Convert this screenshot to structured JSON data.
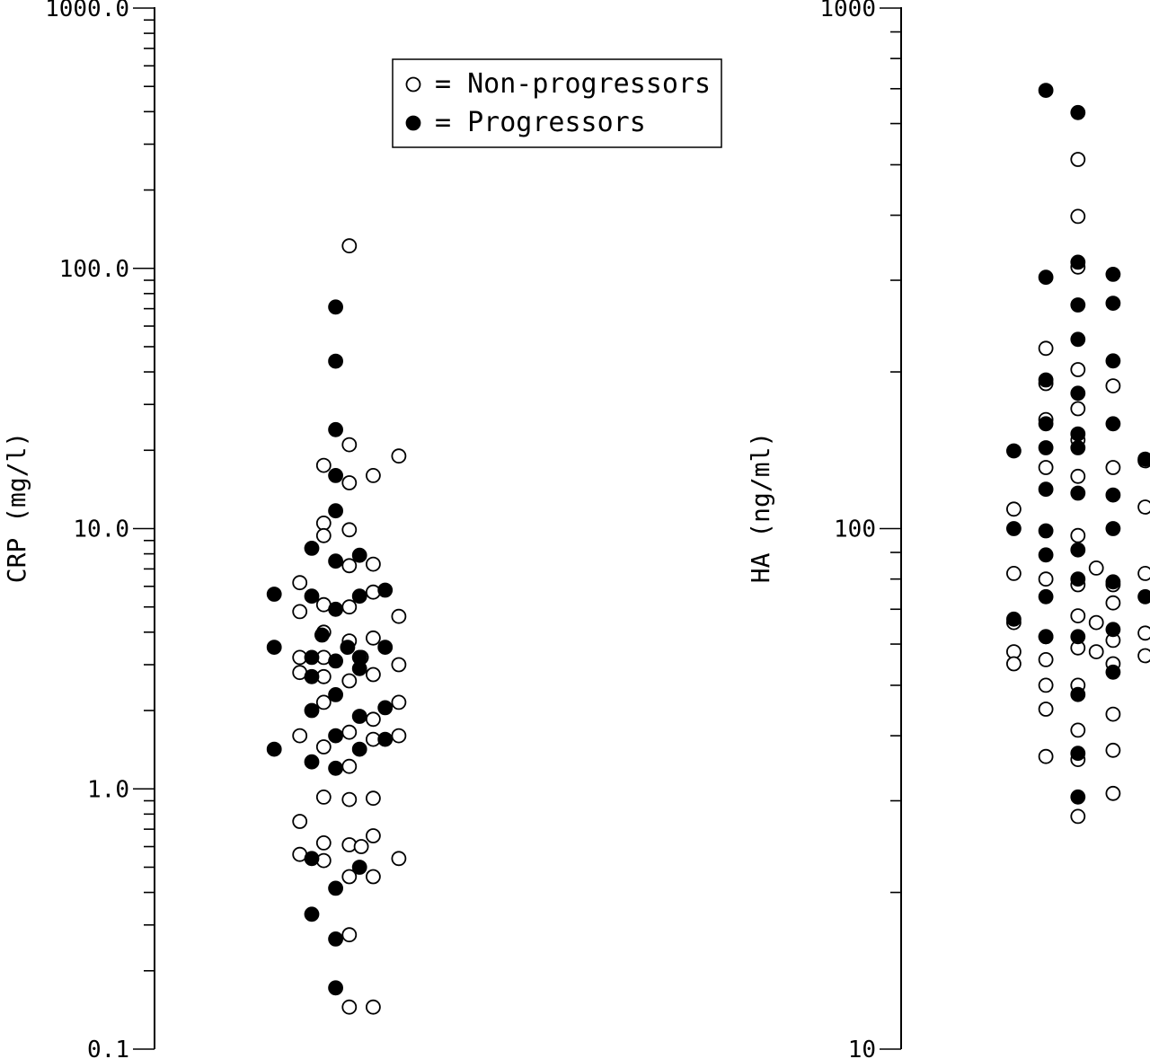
{
  "chart_data": [
    {
      "type": "scatter",
      "title": "",
      "xlabel": "",
      "ylabel": "CRP (mg/l)",
      "yscale": "log",
      "ylim": [
        0.1,
        1000
      ],
      "ticks": [
        "0.1",
        "1.0",
        "10.0",
        "100.0",
        "1000.0"
      ],
      "tick_values": [
        0.1,
        1,
        10,
        100,
        1000
      ],
      "grid": false,
      "legend": {
        "placement": "top-center",
        "entries": [
          {
            "symbol": "open-circle",
            "label": "= Non-progressors"
          },
          {
            "symbol": "filled-circle",
            "label": "= Progressors"
          }
        ]
      },
      "series": [
        {
          "name": "Non-progressors",
          "marker": "open",
          "points": [
            {
              "x": 0.52,
              "y": 122
            },
            {
              "x": 0.52,
              "y": 21
            },
            {
              "x": 0.52,
              "y": 15
            },
            {
              "x": 0.52,
              "y": 9.9
            },
            {
              "x": 0.52,
              "y": 7.2
            },
            {
              "x": 0.52,
              "y": 5.0
            },
            {
              "x": 0.52,
              "y": 3.7
            },
            {
              "x": 0.52,
              "y": 2.6
            },
            {
              "x": 0.52,
              "y": 1.65
            },
            {
              "x": 0.52,
              "y": 1.22
            },
            {
              "x": 0.52,
              "y": 0.91
            },
            {
              "x": 0.52,
              "y": 0.61
            },
            {
              "x": 0.52,
              "y": 0.46
            },
            {
              "x": 0.52,
              "y": 0.275
            },
            {
              "x": 0.52,
              "y": 0.145
            },
            {
              "x": 0.37,
              "y": 17.5
            },
            {
              "x": 0.37,
              "y": 10.5
            },
            {
              "x": 0.37,
              "y": 9.4
            },
            {
              "x": 0.37,
              "y": 5.1
            },
            {
              "x": 0.37,
              "y": 4.0
            },
            {
              "x": 0.37,
              "y": 3.2
            },
            {
              "x": 0.37,
              "y": 2.7
            },
            {
              "x": 0.37,
              "y": 2.15
            },
            {
              "x": 0.37,
              "y": 1.45
            },
            {
              "x": 0.37,
              "y": 0.93
            },
            {
              "x": 0.37,
              "y": 0.62
            },
            {
              "x": 0.37,
              "y": 0.53
            },
            {
              "x": 0.23,
              "y": 6.2
            },
            {
              "x": 0.23,
              "y": 4.8
            },
            {
              "x": 0.23,
              "y": 3.2
            },
            {
              "x": 0.23,
              "y": 2.8
            },
            {
              "x": 0.23,
              "y": 1.6
            },
            {
              "x": 0.23,
              "y": 0.75
            },
            {
              "x": 0.23,
              "y": 0.56
            },
            {
              "x": 0.66,
              "y": 16
            },
            {
              "x": 0.66,
              "y": 7.3
            },
            {
              "x": 0.66,
              "y": 5.7
            },
            {
              "x": 0.66,
              "y": 3.8
            },
            {
              "x": 0.66,
              "y": 2.75
            },
            {
              "x": 0.66,
              "y": 1.85
            },
            {
              "x": 0.66,
              "y": 1.55
            },
            {
              "x": 0.66,
              "y": 0.92
            },
            {
              "x": 0.66,
              "y": 0.66
            },
            {
              "x": 0.66,
              "y": 0.46
            },
            {
              "x": 0.66,
              "y": 0.145
            },
            {
              "x": 0.59,
              "y": 3.2
            },
            {
              "x": 0.59,
              "y": 0.6
            },
            {
              "x": 0.81,
              "y": 19
            },
            {
              "x": 0.81,
              "y": 4.6
            },
            {
              "x": 0.81,
              "y": 3.0
            },
            {
              "x": 0.81,
              "y": 2.15
            },
            {
              "x": 0.81,
              "y": 1.6
            },
            {
              "x": 0.81,
              "y": 0.54
            }
          ]
        },
        {
          "name": "Progressors",
          "marker": "filled",
          "points": [
            {
              "x": 0.44,
              "y": 71
            },
            {
              "x": 0.44,
              "y": 44
            },
            {
              "x": 0.44,
              "y": 24
            },
            {
              "x": 0.44,
              "y": 16
            },
            {
              "x": 0.44,
              "y": 11.7
            },
            {
              "x": 0.44,
              "y": 7.5
            },
            {
              "x": 0.44,
              "y": 4.9
            },
            {
              "x": 0.44,
              "y": 3.1
            },
            {
              "x": 0.44,
              "y": 2.3
            },
            {
              "x": 0.44,
              "y": 1.6
            },
            {
              "x": 0.44,
              "y": 1.2
            },
            {
              "x": 0.44,
              "y": 0.415
            },
            {
              "x": 0.44,
              "y": 0.265
            },
            {
              "x": 0.44,
              "y": 0.172
            },
            {
              "x": 0.3,
              "y": 8.4
            },
            {
              "x": 0.3,
              "y": 5.5
            },
            {
              "x": 0.3,
              "y": 3.2
            },
            {
              "x": 0.3,
              "y": 2.7
            },
            {
              "x": 0.3,
              "y": 2.0
            },
            {
              "x": 0.3,
              "y": 1.27
            },
            {
              "x": 0.3,
              "y": 0.54
            },
            {
              "x": 0.3,
              "y": 0.33
            },
            {
              "x": 0.08,
              "y": 5.6
            },
            {
              "x": 0.08,
              "y": 3.5
            },
            {
              "x": 0.08,
              "y": 1.42
            },
            {
              "x": 0.36,
              "y": 3.9
            },
            {
              "x": 0.51,
              "y": 3.5
            },
            {
              "x": 0.58,
              "y": 7.9
            },
            {
              "x": 0.58,
              "y": 5.5
            },
            {
              "x": 0.58,
              "y": 3.2
            },
            {
              "x": 0.58,
              "y": 2.9
            },
            {
              "x": 0.58,
              "y": 1.9
            },
            {
              "x": 0.58,
              "y": 1.42
            },
            {
              "x": 0.58,
              "y": 0.5
            },
            {
              "x": 0.73,
              "y": 5.8
            },
            {
              "x": 0.73,
              "y": 3.5
            },
            {
              "x": 0.73,
              "y": 2.05
            },
            {
              "x": 0.73,
              "y": 1.55
            }
          ]
        }
      ]
    },
    {
      "type": "scatter",
      "title": "",
      "xlabel": "",
      "ylabel": "HA (ng/ml)",
      "yscale": "log",
      "ylim": [
        10,
        1000
      ],
      "ticks": [
        "10",
        "100",
        "1000"
      ],
      "tick_values": [
        10,
        100,
        1000
      ],
      "grid": false,
      "series": [
        {
          "name": "Non-progressors",
          "marker": "open",
          "points": [
            {
              "x": 0.12,
              "y": 109
            },
            {
              "x": 0.12,
              "y": 82
            },
            {
              "x": 0.12,
              "y": 66
            },
            {
              "x": 0.12,
              "y": 58
            },
            {
              "x": 0.12,
              "y": 55
            },
            {
              "x": 0.33,
              "y": 222
            },
            {
              "x": 0.33,
              "y": 190
            },
            {
              "x": 0.33,
              "y": 162
            },
            {
              "x": 0.33,
              "y": 131
            },
            {
              "x": 0.33,
              "y": 80
            },
            {
              "x": 0.33,
              "y": 62
            },
            {
              "x": 0.33,
              "y": 56
            },
            {
              "x": 0.33,
              "y": 50
            },
            {
              "x": 0.33,
              "y": 45
            },
            {
              "x": 0.33,
              "y": 36.5
            },
            {
              "x": 0.54,
              "y": 512
            },
            {
              "x": 0.54,
              "y": 398
            },
            {
              "x": 0.54,
              "y": 318
            },
            {
              "x": 0.54,
              "y": 202
            },
            {
              "x": 0.54,
              "y": 170
            },
            {
              "x": 0.54,
              "y": 148
            },
            {
              "x": 0.54,
              "y": 126
            },
            {
              "x": 0.54,
              "y": 97
            },
            {
              "x": 0.54,
              "y": 78
            },
            {
              "x": 0.54,
              "y": 68
            },
            {
              "x": 0.54,
              "y": 59
            },
            {
              "x": 0.54,
              "y": 50
            },
            {
              "x": 0.54,
              "y": 41
            },
            {
              "x": 0.54,
              "y": 36
            },
            {
              "x": 0.54,
              "y": 28
            },
            {
              "x": 0.66,
              "y": 84
            },
            {
              "x": 0.66,
              "y": 66
            },
            {
              "x": 0.66,
              "y": 58
            },
            {
              "x": 0.77,
              "y": 188
            },
            {
              "x": 0.77,
              "y": 131
            },
            {
              "x": 0.77,
              "y": 78
            },
            {
              "x": 0.77,
              "y": 72
            },
            {
              "x": 0.77,
              "y": 61
            },
            {
              "x": 0.77,
              "y": 55
            },
            {
              "x": 0.77,
              "y": 44
            },
            {
              "x": 0.77,
              "y": 37.5
            },
            {
              "x": 0.77,
              "y": 31
            },
            {
              "x": 0.98,
              "y": 110
            },
            {
              "x": 0.98,
              "y": 82
            },
            {
              "x": 0.98,
              "y": 63
            },
            {
              "x": 0.98,
              "y": 57
            },
            {
              "x": 0.98,
              "y": 135
            }
          ]
        },
        {
          "name": "Progressors",
          "marker": "filled",
          "points": [
            {
              "x": 0.12,
              "y": 141
            },
            {
              "x": 0.12,
              "y": 100
            },
            {
              "x": 0.12,
              "y": 67
            },
            {
              "x": 0.33,
              "y": 695
            },
            {
              "x": 0.33,
              "y": 304
            },
            {
              "x": 0.33,
              "y": 193
            },
            {
              "x": 0.33,
              "y": 159
            },
            {
              "x": 0.33,
              "y": 143
            },
            {
              "x": 0.33,
              "y": 119
            },
            {
              "x": 0.33,
              "y": 99
            },
            {
              "x": 0.33,
              "y": 89
            },
            {
              "x": 0.33,
              "y": 74
            },
            {
              "x": 0.33,
              "y": 62
            },
            {
              "x": 0.54,
              "y": 630
            },
            {
              "x": 0.54,
              "y": 325
            },
            {
              "x": 0.54,
              "y": 269
            },
            {
              "x": 0.54,
              "y": 231
            },
            {
              "x": 0.54,
              "y": 182
            },
            {
              "x": 0.54,
              "y": 152
            },
            {
              "x": 0.54,
              "y": 143
            },
            {
              "x": 0.54,
              "y": 117
            },
            {
              "x": 0.54,
              "y": 91
            },
            {
              "x": 0.54,
              "y": 80
            },
            {
              "x": 0.54,
              "y": 62
            },
            {
              "x": 0.54,
              "y": 48
            },
            {
              "x": 0.54,
              "y": 37
            },
            {
              "x": 0.54,
              "y": 30.5
            },
            {
              "x": 0.77,
              "y": 308
            },
            {
              "x": 0.77,
              "y": 271
            },
            {
              "x": 0.77,
              "y": 210
            },
            {
              "x": 0.77,
              "y": 159
            },
            {
              "x": 0.77,
              "y": 116
            },
            {
              "x": 0.77,
              "y": 100
            },
            {
              "x": 0.77,
              "y": 79
            },
            {
              "x": 0.77,
              "y": 64
            },
            {
              "x": 0.77,
              "y": 53
            },
            {
              "x": 0.98,
              "y": 136
            },
            {
              "x": 0.98,
              "y": 74
            }
          ]
        }
      ]
    }
  ]
}
